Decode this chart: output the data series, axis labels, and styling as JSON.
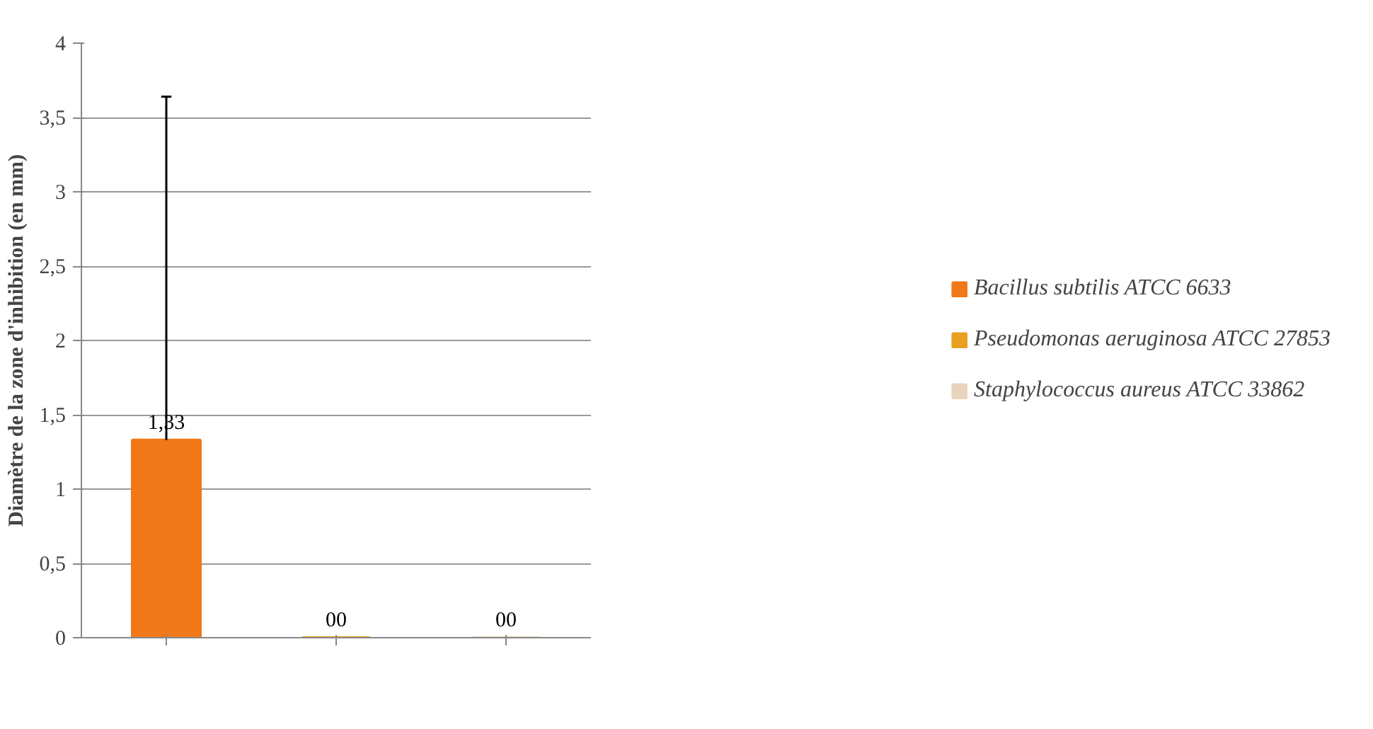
{
  "chart_data": {
    "type": "bar",
    "ylabel": "Diamètre de la zone d'inhibition (en mm)",
    "categories": [
      null,
      null,
      null
    ],
    "series": [
      {
        "name": "Bacillus subtilis ATCC 6633",
        "color": "#f07818",
        "values": [
          1.33,
          null,
          null
        ],
        "errors": [
          [
            1.33,
            3.64
          ],
          null,
          null
        ],
        "value_labels": [
          "1,33",
          null,
          null
        ]
      },
      {
        "name": "Pseudomonas aeruginosa ATCC 27853",
        "color": "#e8a020",
        "values": [
          null,
          0,
          null
        ],
        "value_labels": [
          null,
          "00",
          null
        ]
      },
      {
        "name": "Staphylococcus aureus ATCC 33862",
        "color": "#e8d4bc",
        "values": [
          null,
          null,
          0
        ],
        "value_labels": [
          null,
          null,
          "00"
        ]
      }
    ],
    "ylim": [
      0,
      4
    ],
    "yticks": [
      0,
      {
        "value": 0.5,
        "label": "0,5"
      },
      1,
      {
        "value": 1.5,
        "label": "1,5"
      },
      2,
      {
        "value": 2.5,
        "label": "2,5"
      },
      3,
      {
        "value": 3.5,
        "label": "3,5"
      },
      4
    ],
    "grid": "y",
    "legend": "right"
  }
}
